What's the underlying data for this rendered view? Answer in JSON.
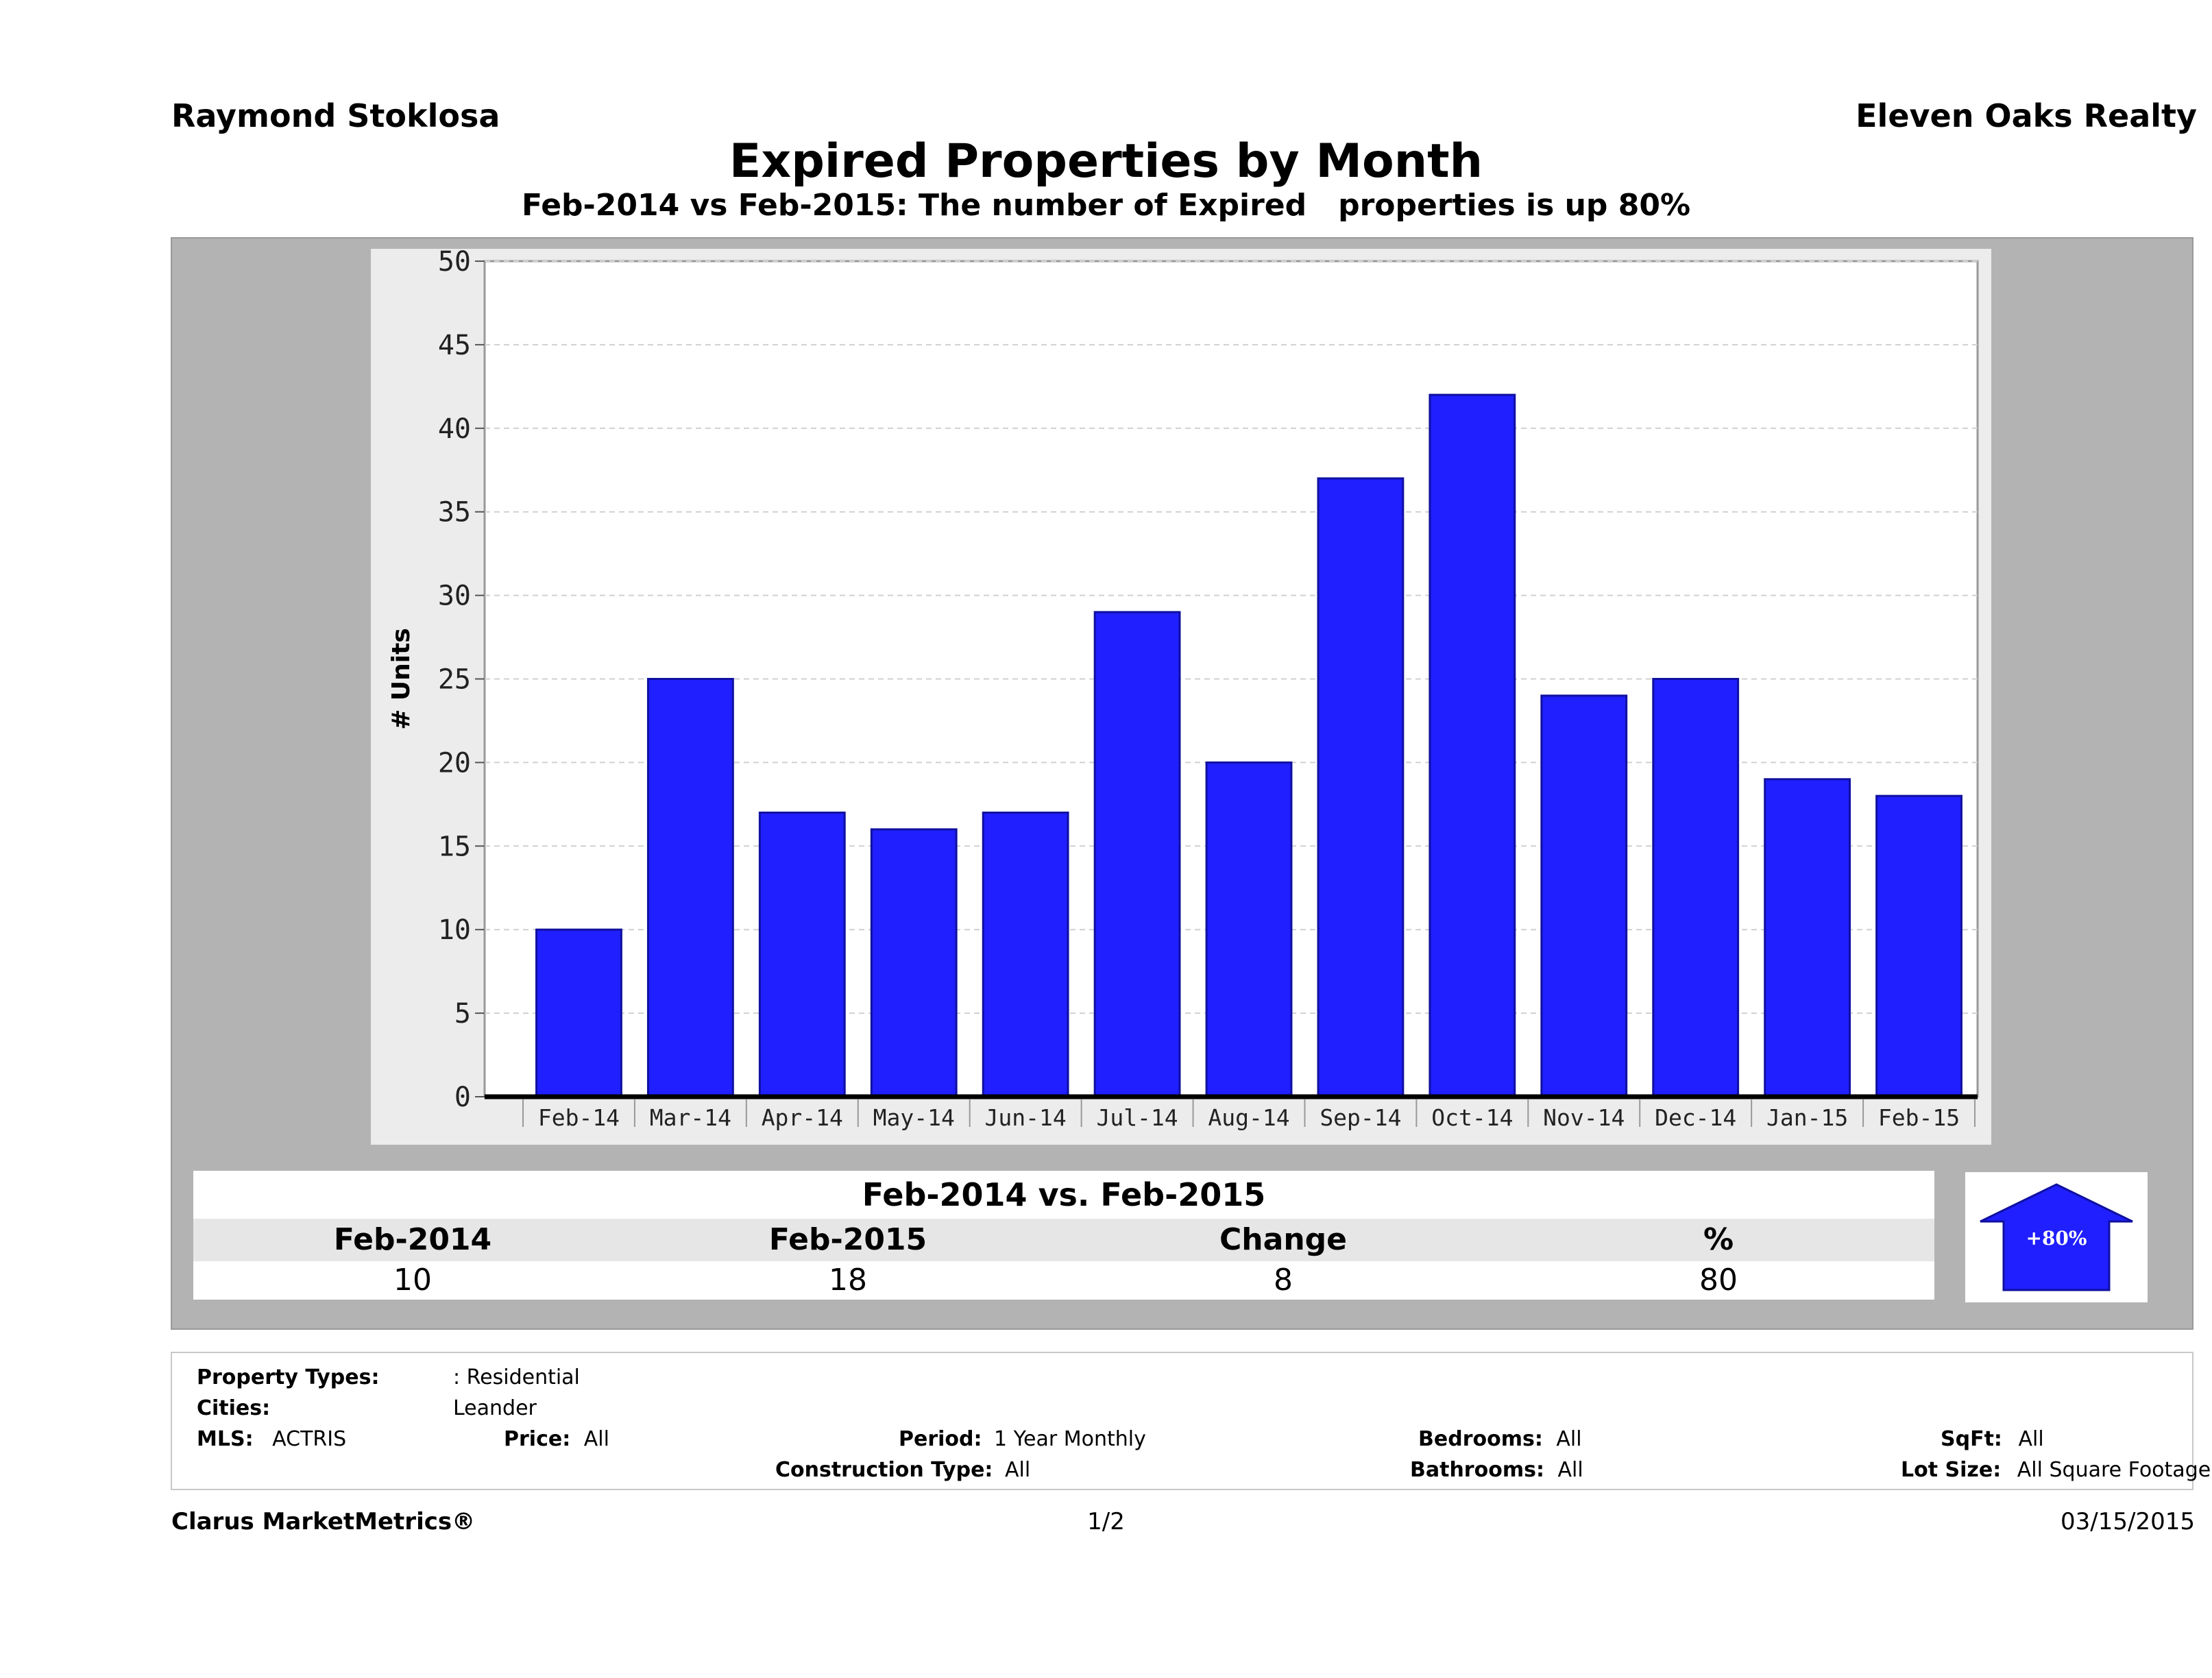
{
  "header": {
    "agent_name": "Raymond Stoklosa",
    "company": "Eleven Oaks Realty",
    "title": "Expired Properties by Month",
    "subtitle": "Feb-2014 vs Feb-2015: The number of Expired   properties is up 80%"
  },
  "chart_data": {
    "type": "bar",
    "title": "Expired Properties by Month",
    "ylabel": "# Units",
    "xlabel": "",
    "categories": [
      "Feb-14",
      "Mar-14",
      "Apr-14",
      "May-14",
      "Jun-14",
      "Jul-14",
      "Aug-14",
      "Sep-14",
      "Oct-14",
      "Nov-14",
      "Dec-14",
      "Jan-15",
      "Feb-15"
    ],
    "values": [
      10,
      25,
      17,
      16,
      17,
      29,
      20,
      37,
      42,
      24,
      25,
      19,
      18
    ],
    "ylim": [
      0,
      50
    ],
    "yticks": [
      0,
      5,
      10,
      15,
      20,
      25,
      30,
      35,
      40,
      45,
      50
    ],
    "grid": true,
    "colors": {
      "bar": "#1f1fff",
      "bar_outline": "#1010a0",
      "plot_bg": "#ffffff",
      "panel_bg": "#b3b3b3",
      "chart_bg": "#ececec",
      "grid": "#d0d0d0"
    }
  },
  "summary": {
    "heading": "Feb-2014 vs. Feb-2015",
    "columns": [
      "Feb-2014",
      "Feb-2015",
      "Change",
      "%"
    ],
    "values": [
      "10",
      "18",
      "8",
      "80"
    ],
    "badge": "+80%"
  },
  "filters": {
    "property_types_label": "Property Types:",
    "property_types_value": ": Residential",
    "cities_label": "Cities:",
    "cities_value": "Leander",
    "mls_label": "MLS:",
    "mls_value": "ACTRIS",
    "price_label": "Price:",
    "price_value": "All",
    "period_label": "Period:",
    "period_value": "1 Year Monthly",
    "construction_label": "Construction Type:",
    "construction_value": "All",
    "bedrooms_label": "Bedrooms:",
    "bedrooms_value": "All",
    "bathrooms_label": "Bathrooms:",
    "bathrooms_value": "All",
    "sqft_label": "SqFt:",
    "sqft_value": "All",
    "lotsize_label": "Lot Size:",
    "lotsize_value": "All Square Footage"
  },
  "footer": {
    "brand": "Clarus MarketMetrics®",
    "page": "1/2",
    "date": "03/15/2015"
  }
}
